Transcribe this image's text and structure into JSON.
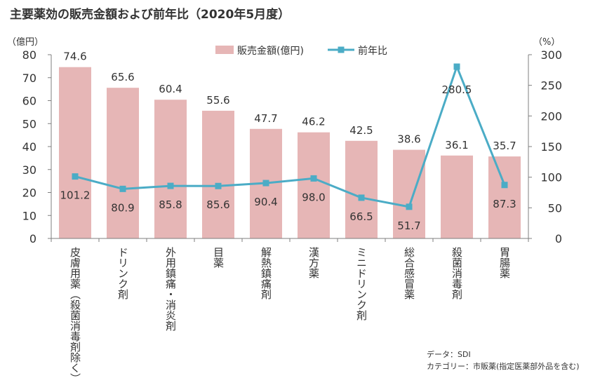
{
  "title": "主要薬効の販売金額および前年比（2020年5月度）",
  "source": {
    "data_line": "データ：SDI",
    "category_line": "カテゴリー：市販薬(指定医薬部外品を含む)"
  },
  "colors": {
    "bar": "#e6b6b6",
    "line": "#4bacc6",
    "axis": "#7f7f7f",
    "text": "#333333"
  },
  "chart_data": {
    "type": "bar",
    "title": "主要薬効の販売金額および前年比（2020年5月度）",
    "categories": [
      "皮膚用薬（殺菌消毒剤除く）",
      "ドリンク剤",
      "外用鎮痛・消炎剤",
      "目薬",
      "解熱鎮痛剤",
      "漢方薬",
      "ミニドリンク剤",
      "総合感冒薬",
      "殺菌消毒剤",
      "胃腸薬"
    ],
    "series": [
      {
        "name": "販売金額(億円)",
        "type": "bar",
        "axis": "left",
        "values": [
          74.6,
          65.6,
          60.4,
          55.6,
          47.7,
          46.2,
          42.5,
          38.6,
          36.1,
          35.7
        ]
      },
      {
        "name": "前年比",
        "type": "line",
        "axis": "right",
        "values": [
          101.2,
          80.9,
          85.8,
          85.6,
          90.4,
          98.0,
          66.5,
          51.7,
          280.5,
          87.3
        ]
      }
    ],
    "y_left": {
      "unit": "（億円）",
      "ylim": [
        0,
        80
      ],
      "ticks": [
        0,
        10,
        20,
        30,
        40,
        50,
        60,
        70,
        80
      ]
    },
    "y_right": {
      "unit": "（%）",
      "ylim": [
        0,
        300
      ],
      "ticks": [
        0,
        50,
        100,
        150,
        200,
        250,
        300
      ]
    },
    "legend": "top-center",
    "grid": false
  }
}
